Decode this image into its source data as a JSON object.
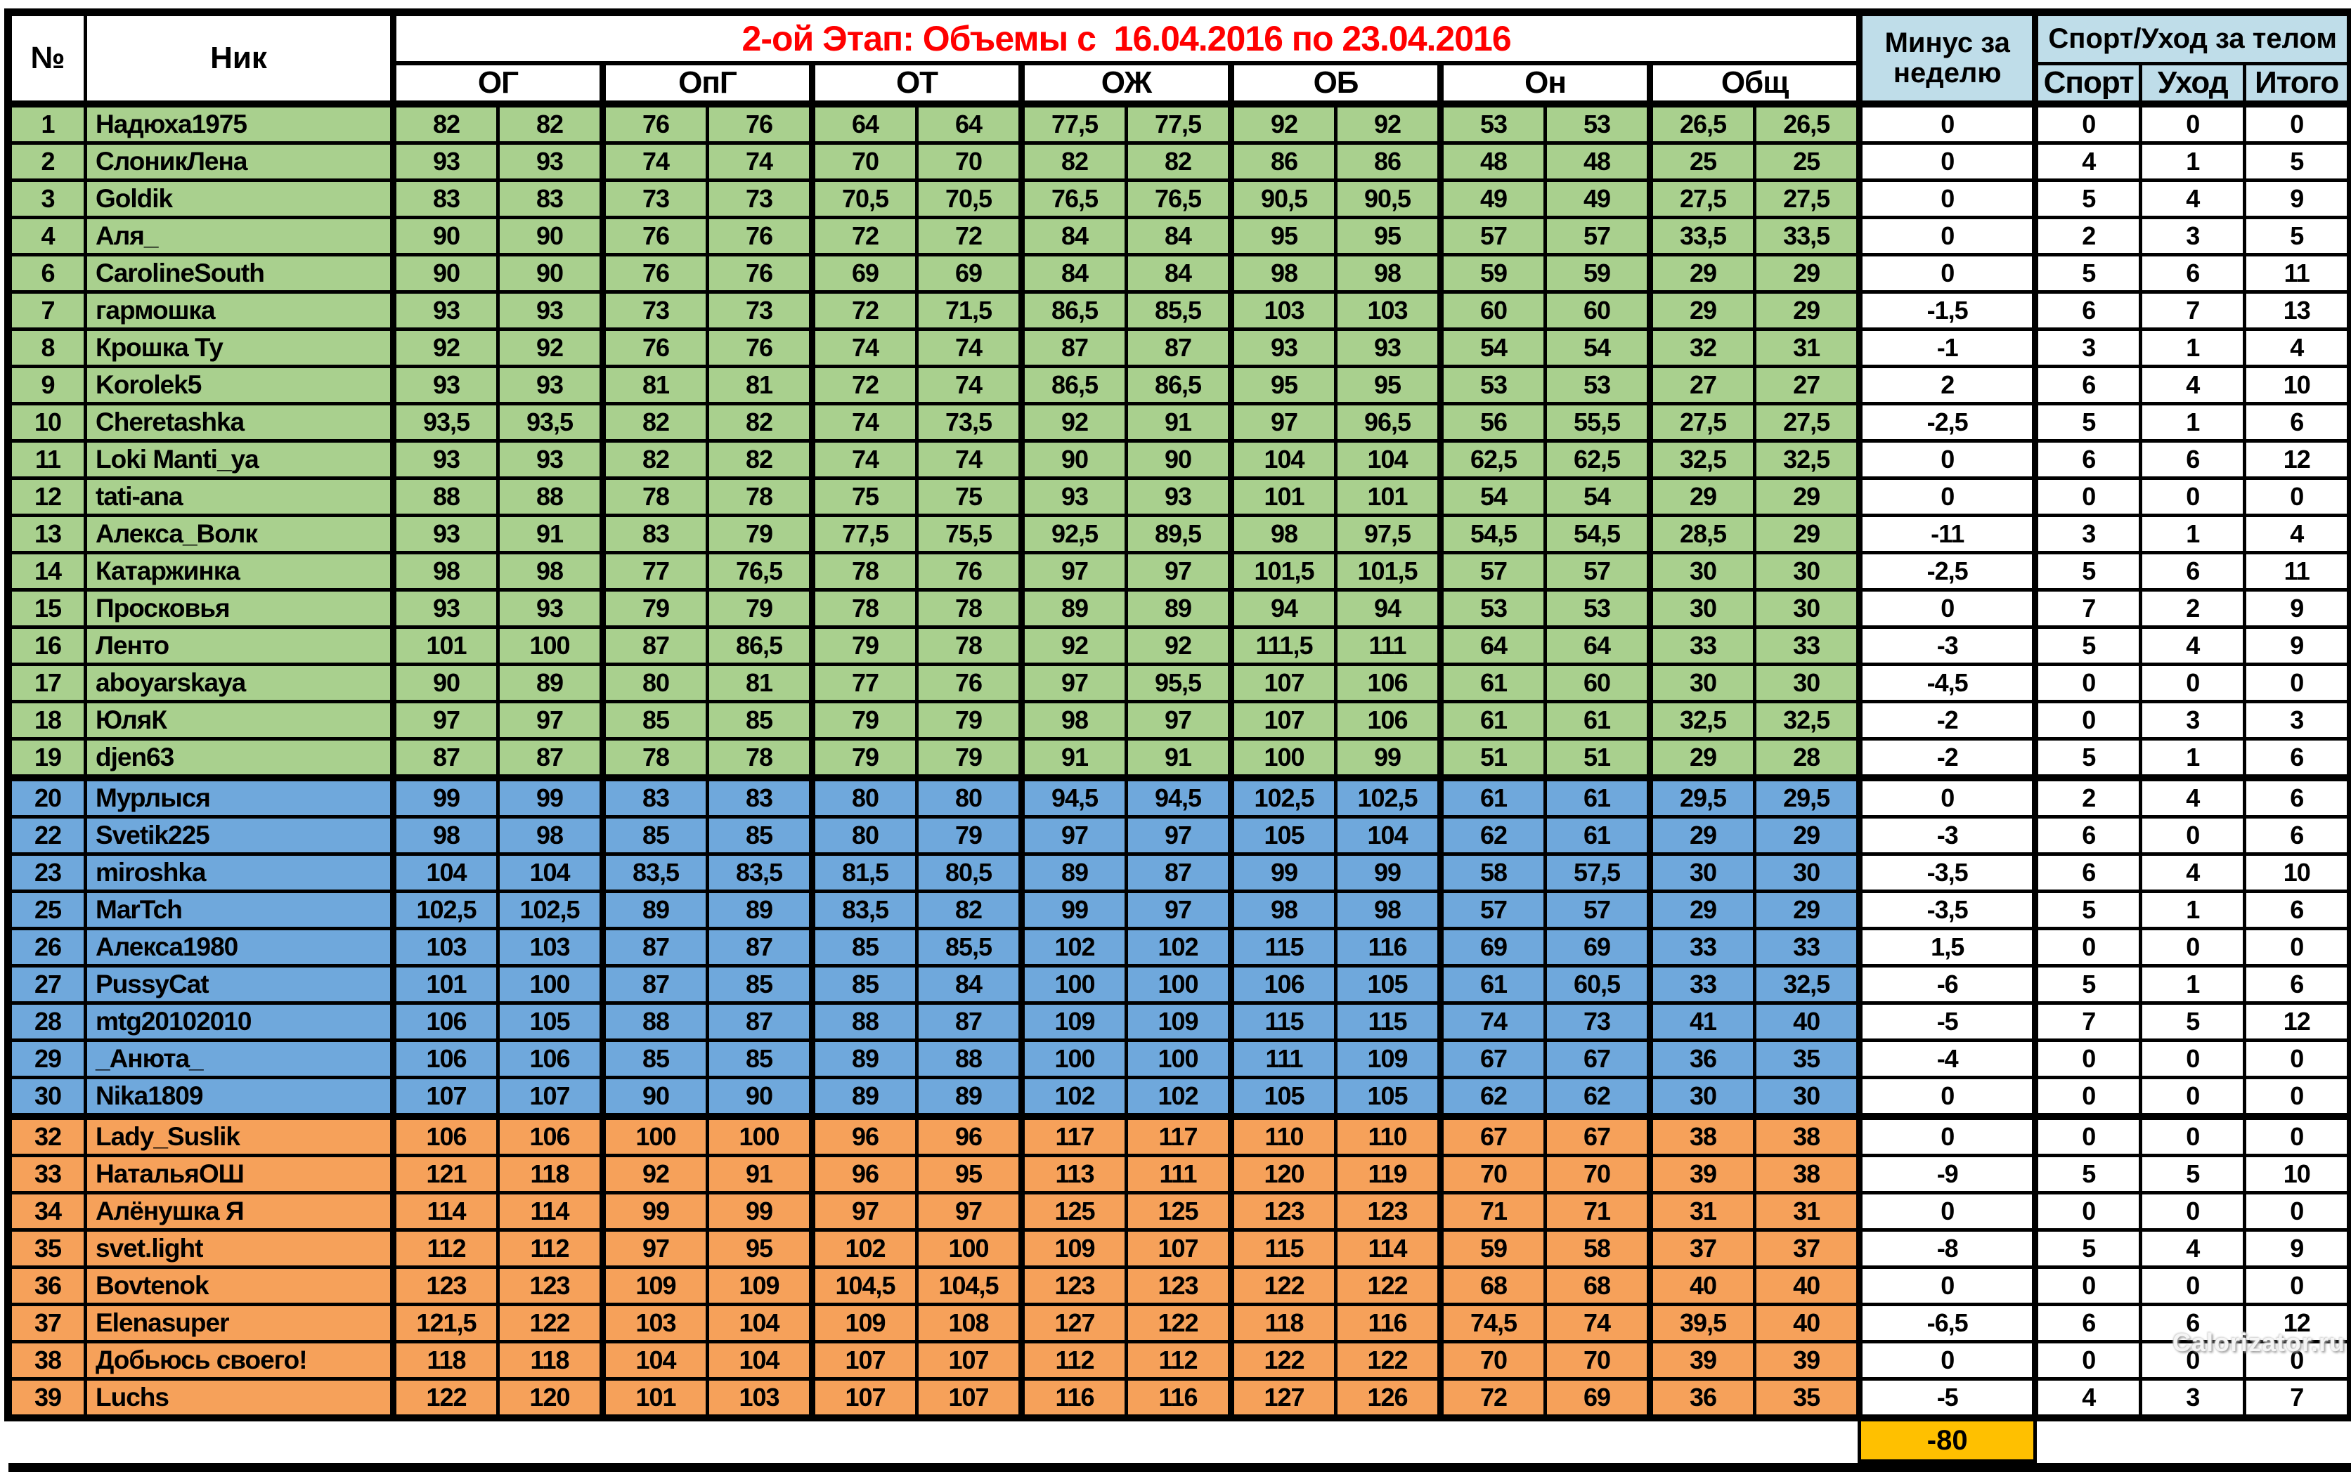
{
  "header": {
    "num": "№",
    "nick": "Ник",
    "stage_title": "2-ой Этап: Объемы с  16.04.2016 по 23.04.2016",
    "groups": [
      "ОГ",
      "ОпГ",
      "ОТ",
      "ОЖ",
      "ОБ",
      "Он",
      "Общ"
    ],
    "minus_line1": "Минус за",
    "minus_line2": "неделю",
    "sport_group": "Спорт/Уход за телом",
    "sport_cols": [
      "Спорт",
      "Уход",
      "Итого"
    ]
  },
  "colors": {
    "zone_green": "#a9d08e",
    "zone_blue": "#6fa8dc",
    "zone_orange": "#f6a15a",
    "header_blue": "#bfdde9",
    "title_red": "#ff0000",
    "total_gold": "#ffc000",
    "border_black": "#000000"
  },
  "rows": [
    {
      "n": "1",
      "nick": "Надюха1975",
      "zone": "green",
      "hatch": "alt",
      "values": [
        "82",
        "82",
        "76",
        "76",
        "64",
        "64",
        "77,5",
        "77,5",
        "92",
        "92",
        "53",
        "53",
        "26,5",
        "26,5"
      ],
      "minus": "0",
      "sport": "0",
      "care": "0",
      "total": "0"
    },
    {
      "n": "2",
      "nick": "СлоникЛена",
      "zone": "green",
      "hatch": "none",
      "values": [
        "93",
        "93",
        "74",
        "74",
        "70",
        "70",
        "82",
        "82",
        "86",
        "86",
        "48",
        "48",
        "25",
        "25"
      ],
      "minus": "0",
      "sport": "4",
      "care": "1",
      "total": "5"
    },
    {
      "n": "3",
      "nick": "Goldik",
      "zone": "green",
      "hatch": "none",
      "values": [
        "83",
        "83",
        "73",
        "73",
        "70,5",
        "70,5",
        "76,5",
        "76,5",
        "90,5",
        "90,5",
        "49",
        "49",
        "27,5",
        "27,5"
      ],
      "minus": "0",
      "sport": "5",
      "care": "4",
      "total": "9"
    },
    {
      "n": "4",
      "nick": "Аля_",
      "zone": "green",
      "hatch": "none",
      "values": [
        "90",
        "90",
        "76",
        "76",
        "72",
        "72",
        "84",
        "84",
        "95",
        "95",
        "57",
        "57",
        "33,5",
        "33,5"
      ],
      "minus": "0",
      "sport": "2",
      "care": "3",
      "total": "5"
    },
    {
      "n": "6",
      "nick": "CarolineSouth",
      "zone": "green",
      "hatch": "none",
      "values": [
        "90",
        "90",
        "76",
        "76",
        "69",
        "69",
        "84",
        "84",
        "98",
        "98",
        "59",
        "59",
        "29",
        "29"
      ],
      "minus": "0",
      "sport": "5",
      "care": "6",
      "total": "11"
    },
    {
      "n": "7",
      "nick": "гармошка",
      "zone": "green",
      "hatch": "none",
      "values": [
        "93",
        "93",
        "73",
        "73",
        "72",
        "71,5",
        "86,5",
        "85,5",
        "103",
        "103",
        "60",
        "60",
        "29",
        "29"
      ],
      "minus": "-1,5",
      "sport": "6",
      "care": "7",
      "total": "13"
    },
    {
      "n": "8",
      "nick": "Крошка Ту",
      "zone": "green",
      "hatch": "none",
      "values": [
        "92",
        "92",
        "76",
        "76",
        "74",
        "74",
        "87",
        "87",
        "93",
        "93",
        "54",
        "54",
        "32",
        "31"
      ],
      "minus": "-1",
      "sport": "3",
      "care": "1",
      "total": "4"
    },
    {
      "n": "9",
      "nick": "Korolek5",
      "zone": "green",
      "hatch": "none",
      "values": [
        "93",
        "93",
        "81",
        "81",
        "72",
        "74",
        "86,5",
        "86,5",
        "95",
        "95",
        "53",
        "53",
        "27",
        "27"
      ],
      "minus": "2",
      "sport": "6",
      "care": "4",
      "total": "10"
    },
    {
      "n": "10",
      "nick": "Cheretashka",
      "zone": "green",
      "hatch": "none",
      "values": [
        "93,5",
        "93,5",
        "82",
        "82",
        "74",
        "73,5",
        "92",
        "91",
        "97",
        "96,5",
        "56",
        "55,5",
        "27,5",
        "27,5"
      ],
      "minus": "-2,5",
      "sport": "5",
      "care": "1",
      "total": "6"
    },
    {
      "n": "11",
      "nick": "Loki Manti_ya",
      "zone": "green",
      "hatch": "none",
      "values": [
        "93",
        "93",
        "82",
        "82",
        "74",
        "74",
        "90",
        "90",
        "104",
        "104",
        "62,5",
        "62,5",
        "32,5",
        "32,5"
      ],
      "minus": "0",
      "sport": "6",
      "care": "6",
      "total": "12"
    },
    {
      "n": "12",
      "nick": "tati-ana",
      "zone": "green",
      "hatch": "full",
      "values": [
        "88",
        "88",
        "78",
        "78",
        "75",
        "75",
        "93",
        "93",
        "101",
        "101",
        "54",
        "54",
        "29",
        "29"
      ],
      "minus": "0",
      "sport": "0",
      "care": "0",
      "total": "0"
    },
    {
      "n": "13",
      "nick": "Алекса_Волк",
      "zone": "green",
      "hatch": "none",
      "values": [
        "93",
        "91",
        "83",
        "79",
        "77,5",
        "75,5",
        "92,5",
        "89,5",
        "98",
        "97,5",
        "54,5",
        "54,5",
        "28,5",
        "29"
      ],
      "minus": "-11",
      "sport": "3",
      "care": "1",
      "total": "4"
    },
    {
      "n": "14",
      "nick": "Катаржинка",
      "zone": "green",
      "hatch": "none",
      "values": [
        "98",
        "98",
        "77",
        "76,5",
        "78",
        "76",
        "97",
        "97",
        "101,5",
        "101,5",
        "57",
        "57",
        "30",
        "30"
      ],
      "minus": "-2,5",
      "sport": "5",
      "care": "6",
      "total": "11"
    },
    {
      "n": "15",
      "nick": "Просковья",
      "zone": "green",
      "hatch": "none",
      "values": [
        "93",
        "93",
        "79",
        "79",
        "78",
        "78",
        "89",
        "89",
        "94",
        "94",
        "53",
        "53",
        "30",
        "30"
      ],
      "minus": "0",
      "sport": "7",
      "care": "2",
      "total": "9"
    },
    {
      "n": "16",
      "nick": "Ленто",
      "zone": "green",
      "hatch": "none",
      "values": [
        "101",
        "100",
        "87",
        "86,5",
        "79",
        "78",
        "92",
        "92",
        "111,5",
        "111",
        "64",
        "64",
        "33",
        "33"
      ],
      "minus": "-3",
      "sport": "5",
      "care": "4",
      "total": "9"
    },
    {
      "n": "17",
      "nick": "aboyarskaya",
      "zone": "green",
      "hatch": "none",
      "values": [
        "90",
        "89",
        "80",
        "81",
        "77",
        "76",
        "97",
        "95,5",
        "107",
        "106",
        "61",
        "60",
        "30",
        "30"
      ],
      "minus": "-4,5",
      "sport": "0",
      "care": "0",
      "total": "0"
    },
    {
      "n": "18",
      "nick": "ЮляК",
      "zone": "green",
      "hatch": "none",
      "values": [
        "97",
        "97",
        "85",
        "85",
        "79",
        "79",
        "98",
        "97",
        "107",
        "106",
        "61",
        "61",
        "32,5",
        "32,5"
      ],
      "minus": "-2",
      "sport": "0",
      "care": "3",
      "total": "3"
    },
    {
      "n": "19",
      "nick": "djen63",
      "zone": "green",
      "hatch": "none",
      "values": [
        "87",
        "87",
        "78",
        "78",
        "79",
        "79",
        "91",
        "91",
        "100",
        "99",
        "51",
        "51",
        "29",
        "28"
      ],
      "minus": "-2",
      "sport": "5",
      "care": "1",
      "total": "6"
    },
    {
      "n": "20",
      "nick": "Мурлыся",
      "zone": "blue",
      "hatch": "none",
      "boundary": true,
      "values": [
        "99",
        "99",
        "83",
        "83",
        "80",
        "80",
        "94,5",
        "94,5",
        "102,5",
        "102,5",
        "61",
        "61",
        "29,5",
        "29,5"
      ],
      "minus": "0",
      "sport": "2",
      "care": "4",
      "total": "6"
    },
    {
      "n": "22",
      "nick": "Svetik225",
      "zone": "blue",
      "hatch": "none",
      "values": [
        "98",
        "98",
        "85",
        "85",
        "80",
        "79",
        "97",
        "97",
        "105",
        "104",
        "62",
        "61",
        "29",
        "29"
      ],
      "minus": "-3",
      "sport": "6",
      "care": "0",
      "total": "6"
    },
    {
      "n": "23",
      "nick": "miroshka",
      "zone": "blue",
      "hatch": "none",
      "values": [
        "104",
        "104",
        "83,5",
        "83,5",
        "81,5",
        "80,5",
        "89",
        "87",
        "99",
        "99",
        "58",
        "57,5",
        "30",
        "30"
      ],
      "minus": "-3,5",
      "sport": "6",
      "care": "4",
      "total": "10"
    },
    {
      "n": "25",
      "nick": "MarTch",
      "zone": "blue",
      "hatch": "none",
      "values": [
        "102,5",
        "102,5",
        "89",
        "89",
        "83,5",
        "82",
        "99",
        "97",
        "98",
        "98",
        "57",
        "57",
        "29",
        "29"
      ],
      "minus": "-3,5",
      "sport": "5",
      "care": "1",
      "total": "6"
    },
    {
      "n": "26",
      "nick": "Алекса1980",
      "zone": "blue",
      "hatch": "none",
      "values": [
        "103",
        "103",
        "87",
        "87",
        "85",
        "85,5",
        "102",
        "102",
        "115",
        "116",
        "69",
        "69",
        "33",
        "33"
      ],
      "minus": "1,5",
      "sport": "0",
      "care": "0",
      "total": "0"
    },
    {
      "n": "27",
      "nick": "PussyCat",
      "zone": "blue",
      "hatch": "none",
      "values": [
        "101",
        "100",
        "87",
        "85",
        "85",
        "84",
        "100",
        "100",
        "106",
        "105",
        "61",
        "60,5",
        "33",
        "32,5"
      ],
      "minus": "-6",
      "sport": "5",
      "care": "1",
      "total": "6"
    },
    {
      "n": "28",
      "nick": "mtg20102010",
      "zone": "blue",
      "hatch": "none",
      "values": [
        "106",
        "105",
        "88",
        "87",
        "88",
        "87",
        "109",
        "109",
        "115",
        "115",
        "74",
        "73",
        "41",
        "40"
      ],
      "minus": "-5",
      "sport": "7",
      "care": "5",
      "total": "12"
    },
    {
      "n": "29",
      "nick": "_Анюта_",
      "zone": "blue",
      "hatch": "none",
      "values": [
        "106",
        "106",
        "85",
        "85",
        "89",
        "88",
        "100",
        "100",
        "111",
        "109",
        "67",
        "67",
        "36",
        "35"
      ],
      "minus": "-4",
      "sport": "0",
      "care": "0",
      "total": "0"
    },
    {
      "n": "30",
      "nick": "Nika1809",
      "zone": "blue",
      "hatch": "alt",
      "values": [
        "107",
        "107",
        "90",
        "90",
        "89",
        "89",
        "102",
        "102",
        "105",
        "105",
        "62",
        "62",
        "30",
        "30"
      ],
      "minus": "0",
      "sport": "0",
      "care": "0",
      "total": "0"
    },
    {
      "n": "32",
      "nick": "Lady_Suslik",
      "zone": "orange",
      "hatch": "none",
      "boundary": true,
      "values": [
        "106",
        "106",
        "100",
        "100",
        "96",
        "96",
        "117",
        "117",
        "110",
        "110",
        "67",
        "67",
        "38",
        "38"
      ],
      "minus": "0",
      "sport": "0",
      "care": "0",
      "total": "0"
    },
    {
      "n": "33",
      "nick": "НатальяОШ",
      "zone": "orange",
      "hatch": "none",
      "values": [
        "121",
        "118",
        "92",
        "91",
        "96",
        "95",
        "113",
        "111",
        "120",
        "119",
        "70",
        "70",
        "39",
        "38"
      ],
      "minus": "-9",
      "sport": "5",
      "care": "5",
      "total": "10"
    },
    {
      "n": "34",
      "nick": "Алёнушка Я",
      "zone": "orange",
      "hatch": "full",
      "values": [
        "114",
        "114",
        "99",
        "99",
        "97",
        "97",
        "125",
        "125",
        "123",
        "123",
        "71",
        "71",
        "31",
        "31"
      ],
      "minus": "0",
      "sport": "0",
      "care": "0",
      "total": "0"
    },
    {
      "n": "35",
      "nick": "svet.light",
      "zone": "orange",
      "hatch": "none",
      "values": [
        "112",
        "112",
        "97",
        "95",
        "102",
        "100",
        "109",
        "107",
        "115",
        "114",
        "59",
        "58",
        "37",
        "37"
      ],
      "minus": "-8",
      "sport": "5",
      "care": "4",
      "total": "9"
    },
    {
      "n": "36",
      "nick": "Bovtenok",
      "zone": "orange",
      "hatch": "full",
      "values": [
        "123",
        "123",
        "109",
        "109",
        "104,5",
        "104,5",
        "123",
        "123",
        "122",
        "122",
        "68",
        "68",
        "40",
        "40"
      ],
      "minus": "0",
      "sport": "0",
      "care": "0",
      "total": "0"
    },
    {
      "n": "37",
      "nick": "Elenasuper",
      "zone": "orange",
      "hatch": "none",
      "values": [
        "121,5",
        "122",
        "103",
        "104",
        "109",
        "108",
        "127",
        "122",
        "118",
        "116",
        "74,5",
        "74",
        "39,5",
        "40"
      ],
      "minus": "-6,5",
      "sport": "6",
      "care": "6",
      "total": "12"
    },
    {
      "n": "38",
      "nick": "Добьюсь своего!",
      "zone": "orange",
      "hatch": "full",
      "values": [
        "118",
        "118",
        "104",
        "104",
        "107",
        "107",
        "112",
        "112",
        "122",
        "122",
        "70",
        "70",
        "39",
        "39"
      ],
      "minus": "0",
      "sport": "0",
      "care": "0",
      "total": "0"
    },
    {
      "n": "39",
      "nick": "Luchs",
      "zone": "orange",
      "hatch": "none",
      "values": [
        "122",
        "120",
        "101",
        "103",
        "107",
        "107",
        "116",
        "116",
        "127",
        "126",
        "72",
        "69",
        "36",
        "35"
      ],
      "minus": "-5",
      "sport": "4",
      "care": "3",
      "total": "7"
    }
  ],
  "footer": {
    "minus_week_total": "-80"
  },
  "watermark": "Calorizator.ru"
}
